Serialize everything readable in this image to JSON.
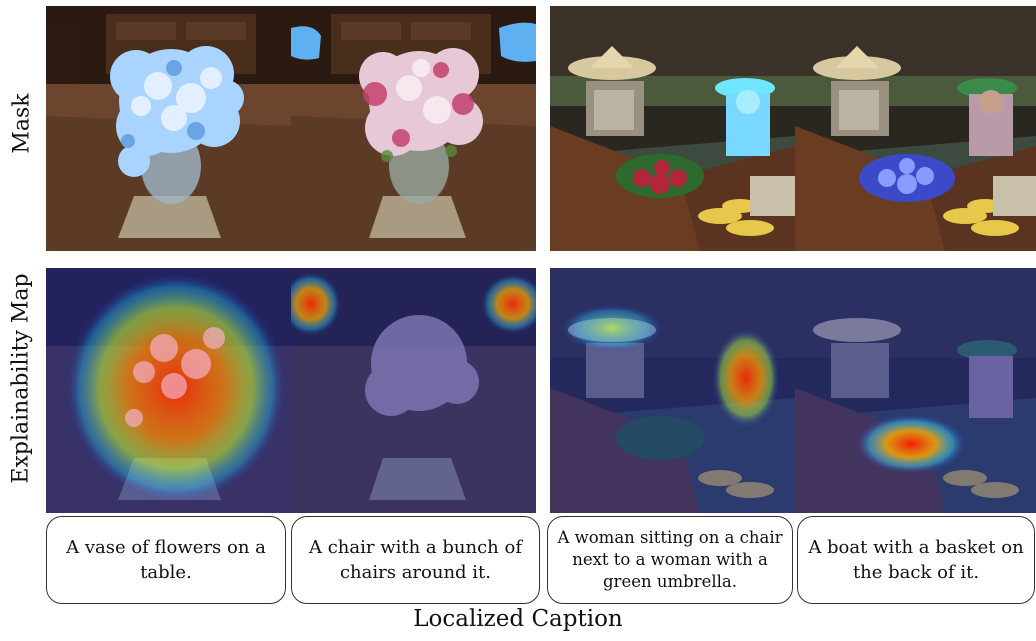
{
  "row_labels": {
    "top": "Mask",
    "bottom": "Explainability Map"
  },
  "captions": [
    "A vase of flowers on a table.",
    "A chair with a bunch of chairs around it.",
    "A woman sitting on a chair next to a woman with a green umbrella.",
    "A boat with a basket on the back of it."
  ],
  "footer": "Localized Caption"
}
